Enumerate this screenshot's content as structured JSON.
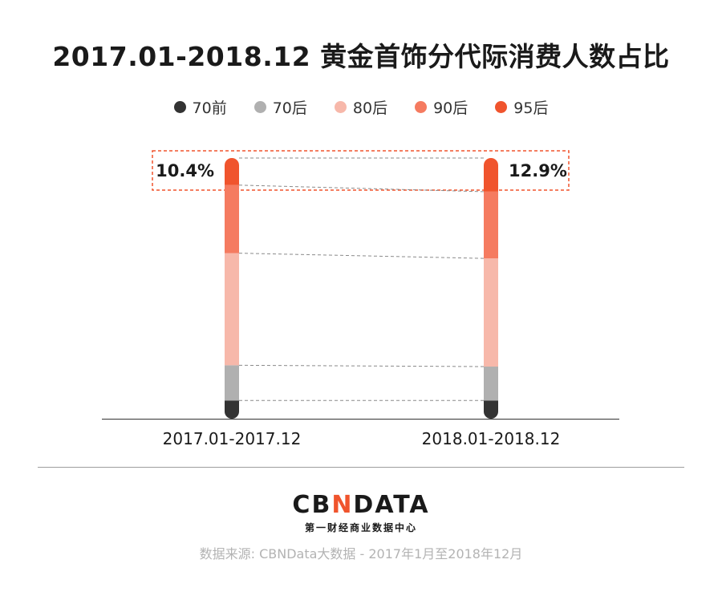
{
  "title": "2017.01-2018.12 黄金首饰分代际消费人数占比",
  "legend": [
    {
      "label": "70前",
      "color": "#333333"
    },
    {
      "label": "70后",
      "color": "#b0b0b0"
    },
    {
      "label": "80后",
      "color": "#f7b8aa"
    },
    {
      "label": "90后",
      "color": "#f57b60"
    },
    {
      "label": "95后",
      "color": "#f0542d"
    }
  ],
  "chart_data": {
    "type": "bar",
    "stacked": true,
    "categories": [
      "2017.01-2017.12",
      "2018.01-2018.12"
    ],
    "series": [
      {
        "name": "70前",
        "values": [
          7.0,
          7.0
        ]
      },
      {
        "name": "70后",
        "values": [
          13.5,
          13.0
        ]
      },
      {
        "name": "80后",
        "values": [
          43.0,
          41.5
        ]
      },
      {
        "name": "90后",
        "values": [
          26.1,
          25.6
        ]
      },
      {
        "name": "95后",
        "values": [
          10.4,
          12.9
        ]
      }
    ],
    "highlight_labels": [
      "10.4%",
      "12.9%"
    ],
    "ylim": [
      0,
      100
    ],
    "grid": false,
    "legend_position": "top"
  },
  "brand": {
    "logo_left": "CB",
    "logo_mid": "N",
    "logo_right": "DATA",
    "sub": "第一财经商业数据中心"
  },
  "source": "数据来源: CBNData大数据 - 2017年1月至2018年12月"
}
